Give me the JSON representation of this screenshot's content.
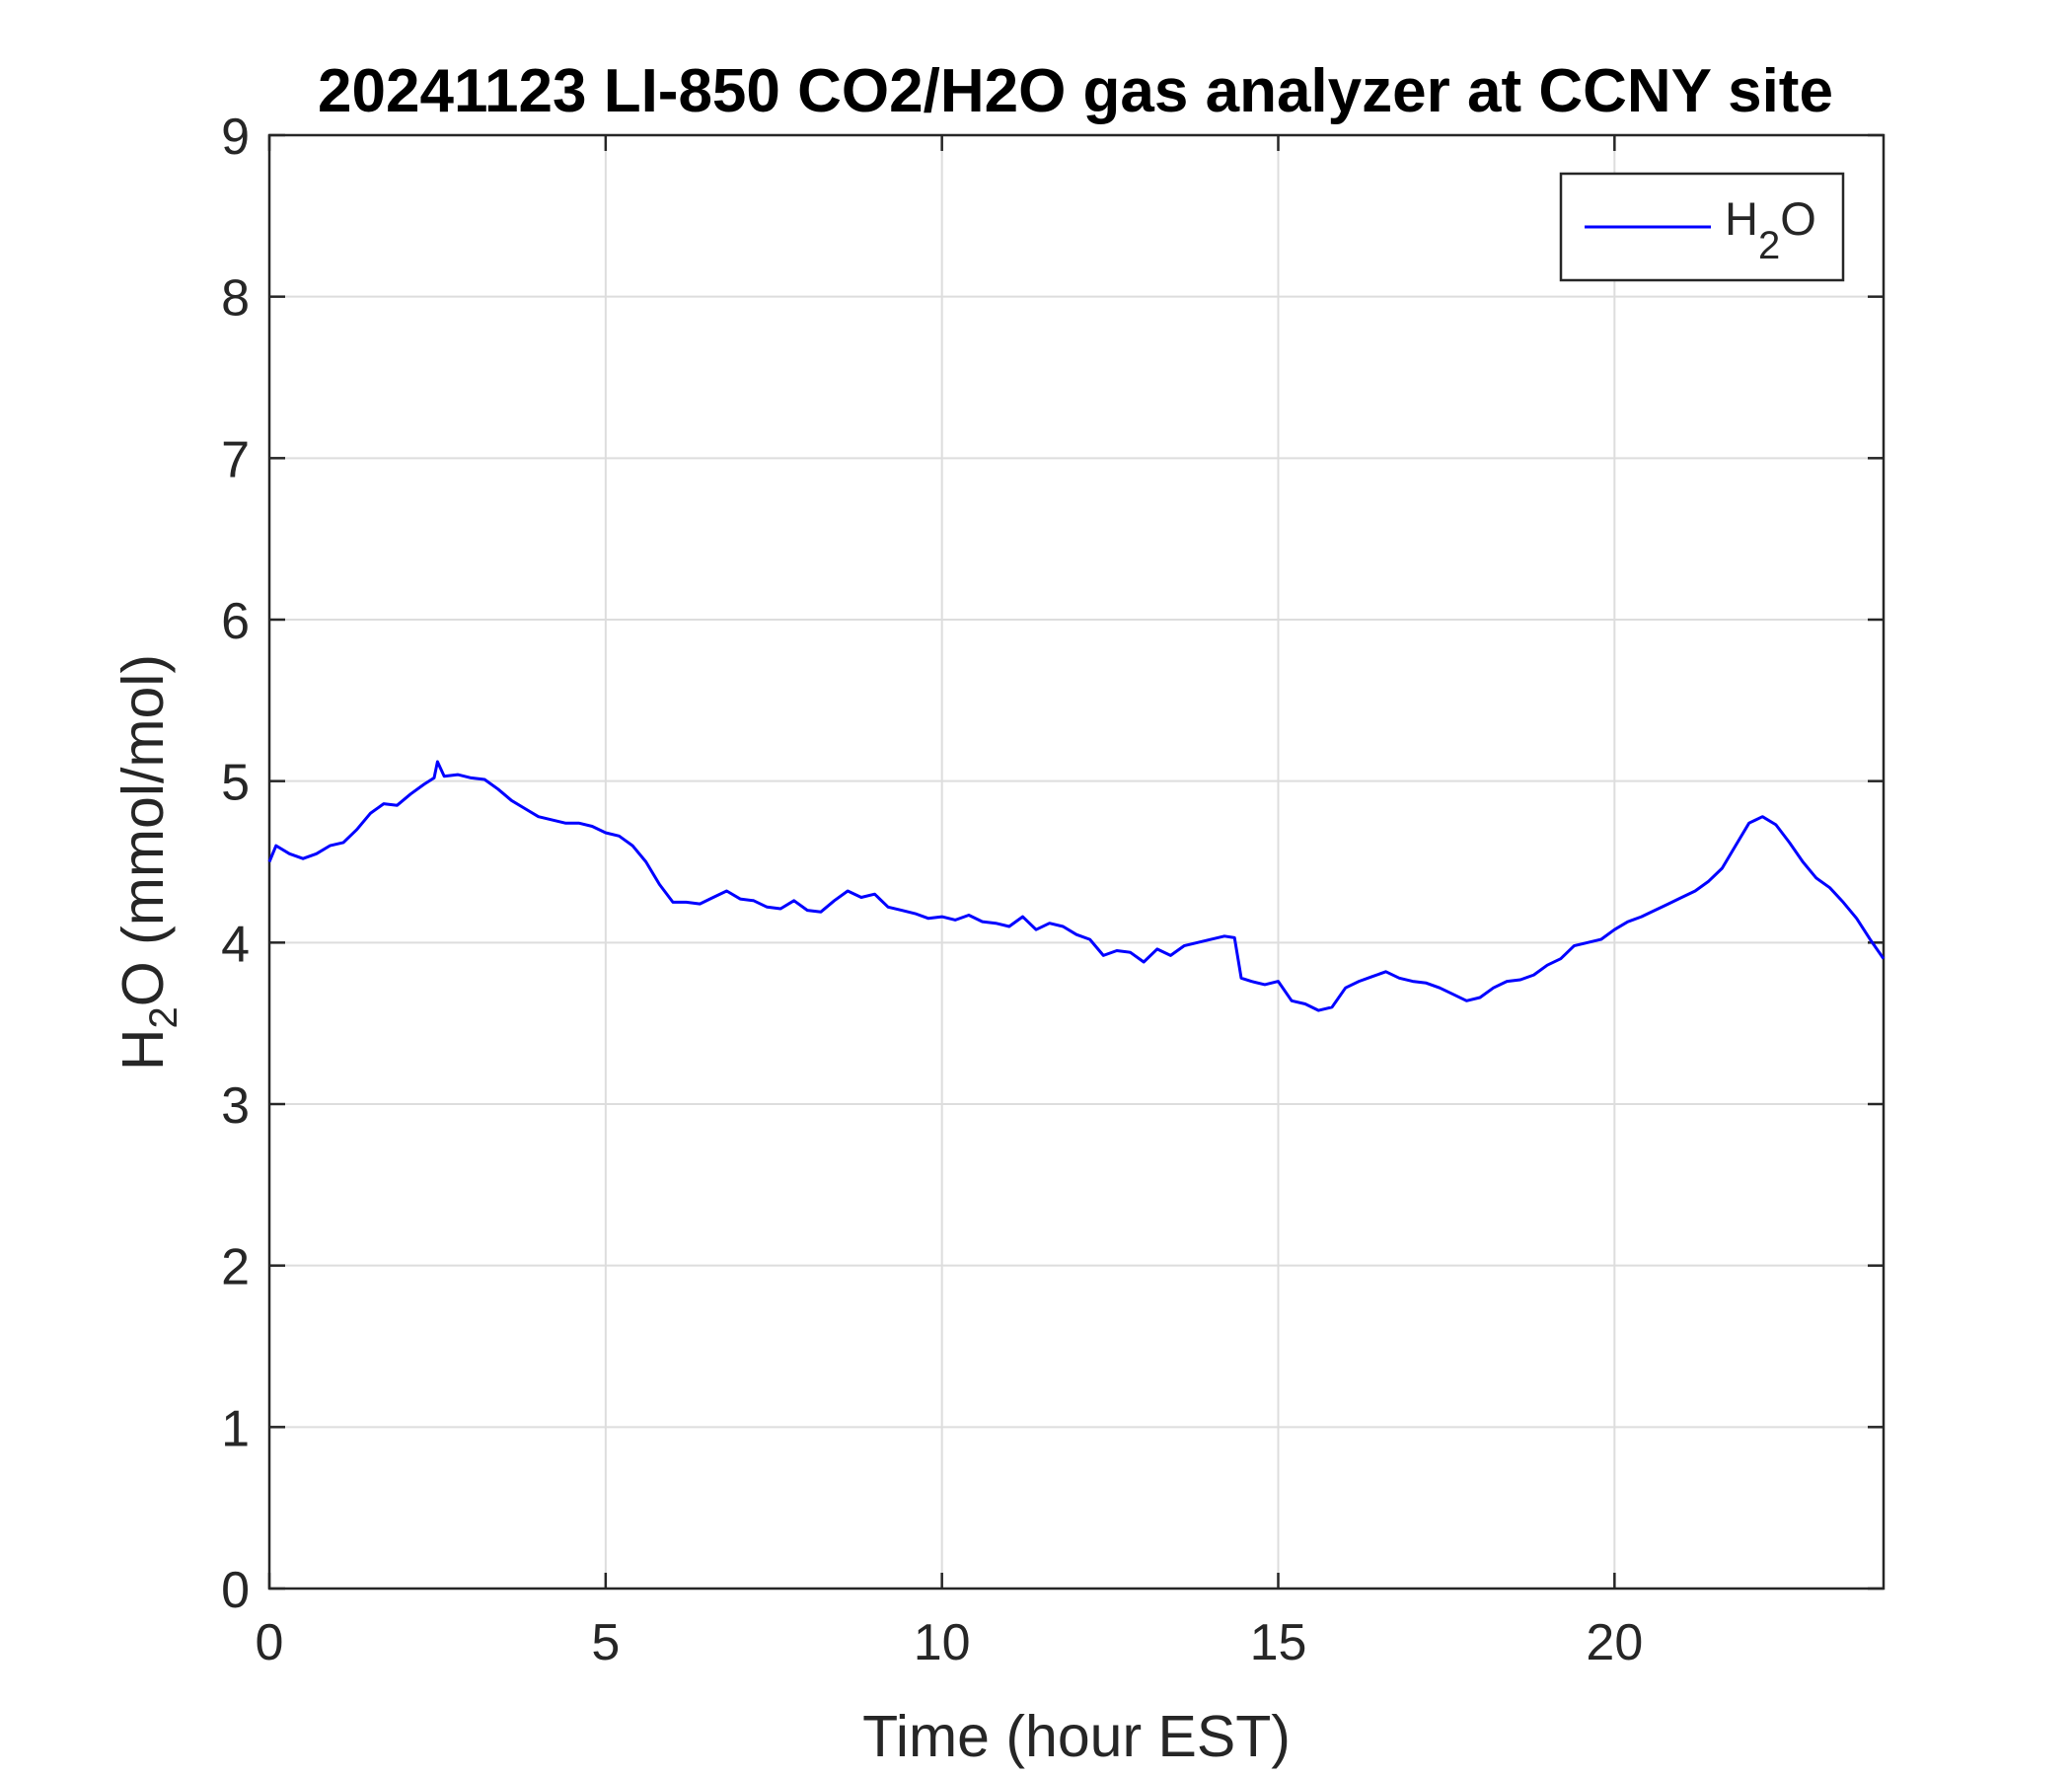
{
  "chart_data": {
    "type": "line",
    "title": "20241123 LI-850 CO2/H2O gas analyzer at CCNY site",
    "xlabel": "Time (hour EST)",
    "ylabel": {
      "pre": "H",
      "sub": "2",
      "post": "O (mmol/mol)"
    },
    "xlim": [
      0,
      24
    ],
    "ylim": [
      0,
      9
    ],
    "xticks": [
      0,
      5,
      10,
      15,
      20
    ],
    "yticks": [
      0,
      1,
      2,
      3,
      4,
      5,
      6,
      7,
      8,
      9
    ],
    "grid": true,
    "legend_position": "top-right",
    "legend": {
      "pre": "H",
      "sub": "2",
      "post": "O"
    },
    "series": [
      {
        "name": "H2O",
        "color": "#0000ff",
        "x": [
          0,
          0.1,
          0.3,
          0.5,
          0.7,
          0.9,
          1.1,
          1.3,
          1.5,
          1.7,
          1.9,
          2.1,
          2.3,
          2.45,
          2.5,
          2.6,
          2.8,
          3.0,
          3.2,
          3.4,
          3.6,
          3.8,
          4.0,
          4.2,
          4.4,
          4.6,
          4.8,
          5.0,
          5.2,
          5.4,
          5.6,
          5.8,
          6.0,
          6.2,
          6.4,
          6.6,
          6.8,
          7.0,
          7.2,
          7.4,
          7.6,
          7.8,
          8.0,
          8.2,
          8.4,
          8.6,
          8.8,
          9.0,
          9.2,
          9.4,
          9.6,
          9.8,
          10.0,
          10.2,
          10.4,
          10.6,
          10.8,
          11.0,
          11.2,
          11.4,
          11.6,
          11.8,
          12.0,
          12.2,
          12.4,
          12.6,
          12.8,
          13.0,
          13.2,
          13.4,
          13.6,
          13.8,
          14.0,
          14.2,
          14.35,
          14.45,
          14.6,
          14.8,
          15.0,
          15.2,
          15.4,
          15.6,
          15.8,
          16.0,
          16.2,
          16.4,
          16.6,
          16.8,
          17.0,
          17.2,
          17.4,
          17.6,
          17.8,
          18.0,
          18.2,
          18.4,
          18.6,
          18.8,
          19.0,
          19.2,
          19.4,
          19.6,
          19.8,
          20.0,
          20.2,
          20.4,
          20.6,
          20.8,
          21.0,
          21.2,
          21.4,
          21.6,
          21.8,
          22.0,
          22.2,
          22.4,
          22.6,
          22.8,
          23.0,
          23.2,
          23.4,
          23.6,
          23.8,
          24.0
        ],
        "y": [
          4.5,
          4.6,
          4.55,
          4.52,
          4.55,
          4.6,
          4.62,
          4.7,
          4.8,
          4.86,
          4.85,
          4.92,
          4.98,
          5.02,
          5.12,
          5.03,
          5.04,
          5.02,
          5.01,
          4.95,
          4.88,
          4.83,
          4.78,
          4.76,
          4.74,
          4.74,
          4.72,
          4.68,
          4.66,
          4.6,
          4.5,
          4.36,
          4.25,
          4.25,
          4.24,
          4.28,
          4.32,
          4.27,
          4.26,
          4.22,
          4.21,
          4.26,
          4.2,
          4.19,
          4.26,
          4.32,
          4.28,
          4.3,
          4.22,
          4.2,
          4.18,
          4.15,
          4.16,
          4.14,
          4.17,
          4.13,
          4.12,
          4.1,
          4.16,
          4.08,
          4.12,
          4.1,
          4.05,
          4.02,
          3.92,
          3.95,
          3.94,
          3.88,
          3.96,
          3.92,
          3.98,
          4.0,
          4.02,
          4.04,
          4.03,
          3.78,
          3.76,
          3.74,
          3.76,
          3.64,
          3.62,
          3.58,
          3.6,
          3.72,
          3.76,
          3.79,
          3.82,
          3.78,
          3.76,
          3.75,
          3.72,
          3.68,
          3.64,
          3.66,
          3.72,
          3.76,
          3.77,
          3.8,
          3.86,
          3.9,
          3.98,
          4.0,
          4.02,
          4.08,
          4.13,
          4.16,
          4.2,
          4.24,
          4.28,
          4.32,
          4.38,
          4.46,
          4.6,
          4.74,
          4.78,
          4.73,
          4.62,
          4.5,
          4.4,
          4.34,
          4.25,
          4.15,
          4.02,
          3.9
        ]
      }
    ]
  }
}
